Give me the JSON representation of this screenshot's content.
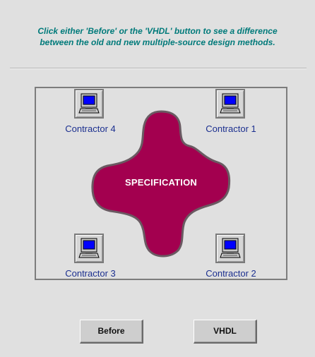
{
  "instructions": {
    "line1": "Click either 'Before' or the 'VHDL' button to see a difference",
    "line2": "between the old and new multiple-source design methods."
  },
  "diagram": {
    "center_label": "SPECIFICATION",
    "contractors": [
      {
        "label": "Contractor 4"
      },
      {
        "label": "Contractor 1"
      },
      {
        "label": "Contractor 3"
      },
      {
        "label": "Contractor 2"
      }
    ]
  },
  "buttons": {
    "before_label": "Before",
    "vhdl_label": "VHDL"
  },
  "colors": {
    "background": "#e0e0e0",
    "instruction_text": "#007a7a",
    "specification_blob": "#a3004f",
    "contractor_text": "#1b2f8f",
    "screen": "#0000ff"
  }
}
